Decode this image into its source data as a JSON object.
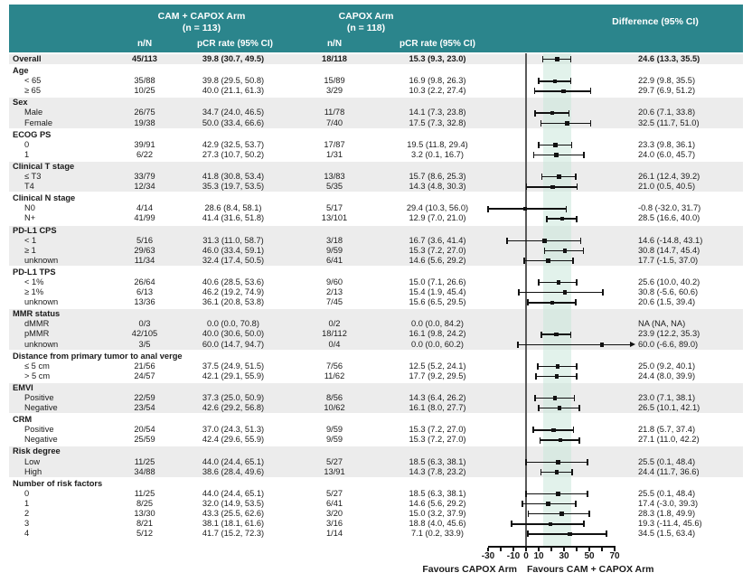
{
  "colors": {
    "header_teal": "#2b858c",
    "row_shade": "#ececec",
    "shaded_band": "#cbe8da",
    "marker_black": "#111111"
  },
  "chart_data": {
    "type": "scatter",
    "subtype": "forest-plot",
    "header": {
      "arm1_line1": "CAM + CAPOX Arm",
      "arm1_line2": "(n = 113)",
      "arm2_line1": "CAPOX Arm",
      "arm2_line2": "(n = 118)",
      "diff": "Difference (95% CI)",
      "col_nN": "n/N",
      "col_pcr": "pCR rate (95% CI)"
    },
    "axis": {
      "min": -30,
      "max": 70,
      "tick_step": 10,
      "tick_labels": [
        {
          "v": -30,
          "t": "-30"
        },
        {
          "v": -10,
          "t": "-10"
        },
        {
          "v": 0,
          "t": "0"
        },
        {
          "v": 10,
          "t": "10"
        },
        {
          "v": 30,
          "t": "30"
        },
        {
          "v": 50,
          "t": "50"
        },
        {
          "v": 70,
          "t": "70"
        }
      ],
      "favours_left": "Favours CAPOX Arm",
      "favours_right": "Favours CAM + CAPOX Arm"
    },
    "shaded_band": {
      "lo": 13.3,
      "hi": 35.5
    },
    "overall": {
      "label": "Overall",
      "n1": "45/113",
      "pcr1": "39.8 (30.7, 49.5)",
      "n2": "18/118",
      "pcr2": "15.3 (9.3, 23.0)",
      "diff": "24.6 (13.3, 35.5)",
      "est": 24.6,
      "lo": 13.3,
      "hi": 35.5
    },
    "groups": [
      {
        "label": "Age",
        "rows": [
          {
            "label": "< 65",
            "n1": "35/88",
            "pcr1": "39.8 (29.5, 50.8)",
            "n2": "15/89",
            "pcr2": "16.9 (9.8, 26.3)",
            "diff": "22.9 (9.8, 35.5)",
            "est": 22.9,
            "lo": 9.8,
            "hi": 35.5
          },
          {
            "label": "≥ 65",
            "n1": "10/25",
            "pcr1": "40.0 (21.1, 61.3)",
            "n2": "3/29",
            "pcr2": "10.3 (2.2, 27.4)",
            "diff": "29.7 (6.9, 51.2)",
            "est": 29.7,
            "lo": 6.9,
            "hi": 51.2
          }
        ]
      },
      {
        "label": "Sex",
        "rows": [
          {
            "label": "Male",
            "n1": "26/75",
            "pcr1": "34.7 (24.0, 46.5)",
            "n2": "11/78",
            "pcr2": "14.1 (7.3, 23.8)",
            "diff": "20.6 (7.1, 33.8)",
            "est": 20.6,
            "lo": 7.1,
            "hi": 33.8
          },
          {
            "label": "Female",
            "n1": "19/38",
            "pcr1": "50.0 (33.4, 66.6)",
            "n2": "7/40",
            "pcr2": "17.5 (7.3, 32.8)",
            "diff": "32.5 (11.7, 51.0)",
            "est": 32.5,
            "lo": 11.7,
            "hi": 51.0
          }
        ]
      },
      {
        "label": "ECOG PS",
        "rows": [
          {
            "label": "0",
            "n1": "39/91",
            "pcr1": "42.9 (32.5, 53.7)",
            "n2": "17/87",
            "pcr2": "19.5 (11.8, 29.4)",
            "diff": "23.3 (9.8, 36.1)",
            "est": 23.3,
            "lo": 9.8,
            "hi": 36.1
          },
          {
            "label": "1",
            "n1": "6/22",
            "pcr1": "27.3 (10.7, 50.2)",
            "n2": "1/31",
            "pcr2": "3.2 (0.1, 16.7)",
            "diff": "24.0 (6.0, 45.7)",
            "est": 24.0,
            "lo": 6.0,
            "hi": 45.7
          }
        ]
      },
      {
        "label": "Clinical T stage",
        "rows": [
          {
            "label": "≤ T3",
            "n1": "33/79",
            "pcr1": "41.8 (30.8, 53.4)",
            "n2": "13/83",
            "pcr2": "15.7 (8.6, 25.3)",
            "diff": "26.1 (12.4, 39.2)",
            "est": 26.1,
            "lo": 12.4,
            "hi": 39.2
          },
          {
            "label": "T4",
            "n1": "12/34",
            "pcr1": "35.3 (19.7, 53.5)",
            "n2": "5/35",
            "pcr2": "14.3 (4.8, 30.3)",
            "diff": "21.0 (0.5, 40.5)",
            "est": 21.0,
            "lo": 0.5,
            "hi": 40.5
          }
        ]
      },
      {
        "label": "Clinical N stage",
        "rows": [
          {
            "label": "N0",
            "n1": "4/14",
            "pcr1": "28.6 (8.4, 58.1)",
            "n2": "5/17",
            "pcr2": "29.4 (10.3, 56.0)",
            "diff": "-0.8 (-32.0, 31.7)",
            "est": -0.8,
            "lo": -32.0,
            "hi": 31.7
          },
          {
            "label": "N+",
            "n1": "41/99",
            "pcr1": "41.4 (31.6, 51.8)",
            "n2": "13/101",
            "pcr2": "12.9 (7.0, 21.0)",
            "diff": "28.5 (16.6, 40.0)",
            "est": 28.5,
            "lo": 16.6,
            "hi": 40.0
          }
        ]
      },
      {
        "label": "PD-L1 CPS",
        "rows": [
          {
            "label": "< 1",
            "n1": "5/16",
            "pcr1": "31.3 (11.0, 58.7)",
            "n2": "3/18",
            "pcr2": "16.7 (3.6, 41.4)",
            "diff": "14.6 (-14.8, 43.1)",
            "est": 14.6,
            "lo": -14.8,
            "hi": 43.1
          },
          {
            "label": "≥ 1",
            "n1": "29/63",
            "pcr1": "46.0 (33.4, 59.1)",
            "n2": "9/59",
            "pcr2": "15.3 (7.2, 27.0)",
            "diff": "30.8 (14.7, 45.4)",
            "est": 30.8,
            "lo": 14.7,
            "hi": 45.4
          },
          {
            "label": "unknown",
            "n1": "11/34",
            "pcr1": "32.4 (17.4, 50.5)",
            "n2": "6/41",
            "pcr2": "14.6 (5.6, 29.2)",
            "diff": "17.7 (-1.5, 37.0)",
            "est": 17.7,
            "lo": -1.5,
            "hi": 37.0
          }
        ]
      },
      {
        "label": "PD-L1 TPS",
        "rows": [
          {
            "label": "< 1%",
            "n1": "26/64",
            "pcr1": "40.6 (28.5, 53.6)",
            "n2": "9/60",
            "pcr2": "15.0 (7.1, 26.6)",
            "diff": "25.6 (10.0, 40.2)",
            "est": 25.6,
            "lo": 10.0,
            "hi": 40.2
          },
          {
            "label": "≥ 1%",
            "n1": "6/13",
            "pcr1": "46.2 (19.2, 74.9)",
            "n2": "2/13",
            "pcr2": "15.4 (1.9, 45.4)",
            "diff": "30.8 (-5.6, 60.6)",
            "est": 30.8,
            "lo": -5.6,
            "hi": 60.6
          },
          {
            "label": "unknown",
            "n1": "13/36",
            "pcr1": "36.1 (20.8, 53.8)",
            "n2": "7/45",
            "pcr2": "15.6 (6.5, 29.5)",
            "diff": "20.6 (1.5, 39.4)",
            "est": 20.6,
            "lo": 1.5,
            "hi": 39.4
          }
        ]
      },
      {
        "label": "MMR status",
        "rows": [
          {
            "label": "dMMR",
            "n1": "0/3",
            "pcr1": "0.0 (0.0, 70.8)",
            "n2": "0/2",
            "pcr2": "0.0 (0.0, 84.2)",
            "diff": "NA (NA, NA)",
            "est": null,
            "lo": null,
            "hi": null,
            "na": true
          },
          {
            "label": "pMMR",
            "n1": "42/105",
            "pcr1": "40.0 (30.6, 50.0)",
            "n2": "18/112",
            "pcr2": "16.1 (9.8, 24.2)",
            "diff": "23.9 (12.2, 35.3)",
            "est": 23.9,
            "lo": 12.2,
            "hi": 35.3
          },
          {
            "label": "unknown",
            "n1": "3/5",
            "pcr1": "60.0 (14.7, 94.7)",
            "n2": "0/4",
            "pcr2": "0.0 (0.0, 60.2)",
            "diff": "60.0 (-6.6, 89.0)",
            "est": 60.0,
            "lo": -6.6,
            "hi": 89.0,
            "arrow_right": true
          }
        ]
      },
      {
        "label": "Distance from primary tumor to anal verge",
        "rows": [
          {
            "label": "≤ 5 cm",
            "n1": "21/56",
            "pcr1": "37.5 (24.9, 51.5)",
            "n2": "7/56",
            "pcr2": "12.5 (5.2, 24.1)",
            "diff": "25.0 (9.2, 40.1)",
            "est": 25.0,
            "lo": 9.2,
            "hi": 40.1
          },
          {
            "label": "> 5 cm",
            "n1": "24/57",
            "pcr1": "42.1 (29.1, 55.9)",
            "n2": "11/62",
            "pcr2": "17.7 (9.2, 29.5)",
            "diff": "24.4 (8.0, 39.9)",
            "est": 24.4,
            "lo": 8.0,
            "hi": 39.9
          }
        ]
      },
      {
        "label": "EMVI",
        "rows": [
          {
            "label": "Positive",
            "n1": "22/59",
            "pcr1": "37.3 (25.0, 50.9)",
            "n2": "8/56",
            "pcr2": "14.3 (6.4, 26.2)",
            "diff": "23.0 (7.1, 38.1)",
            "est": 23.0,
            "lo": 7.1,
            "hi": 38.1
          },
          {
            "label": "Negative",
            "n1": "23/54",
            "pcr1": "42.6 (29.2, 56.8)",
            "n2": "10/62",
            "pcr2": "16.1 (8.0, 27.7)",
            "diff": "26.5 (10.1, 42.1)",
            "est": 26.5,
            "lo": 10.1,
            "hi": 42.1
          }
        ]
      },
      {
        "label": "CRM",
        "rows": [
          {
            "label": "Positive",
            "n1": "20/54",
            "pcr1": "37.0 (24.3, 51.3)",
            "n2": "9/59",
            "pcr2": "15.3 (7.2, 27.0)",
            "diff": "21.8 (5.7, 37.4)",
            "est": 21.8,
            "lo": 5.7,
            "hi": 37.4
          },
          {
            "label": "Negative",
            "n1": "25/59",
            "pcr1": "42.4 (29.6, 55.9)",
            "n2": "9/59",
            "pcr2": "15.3 (7.2, 27.0)",
            "diff": "27.1 (11.0, 42.2)",
            "est": 27.1,
            "lo": 11.0,
            "hi": 42.2
          }
        ]
      },
      {
        "label": "Risk degree",
        "rows": [
          {
            "label": "Low",
            "n1": "11/25",
            "pcr1": "44.0 (24.4, 65.1)",
            "n2": "5/27",
            "pcr2": "18.5 (6.3, 38.1)",
            "diff": "25.5 (0.1, 48.4)",
            "est": 25.5,
            "lo": 0.1,
            "hi": 48.4
          },
          {
            "label": "High",
            "n1": "34/88",
            "pcr1": "38.6 (28.4, 49.6)",
            "n2": "13/91",
            "pcr2": "14.3 (7.8, 23.2)",
            "diff": "24.4 (11.7, 36.6)",
            "est": 24.4,
            "lo": 11.7,
            "hi": 36.6
          }
        ]
      },
      {
        "label": "Number of risk factors",
        "rows": [
          {
            "label": "0",
            "n1": "11/25",
            "pcr1": "44.0 (24.4, 65.1)",
            "n2": "5/27",
            "pcr2": "18.5 (6.3, 38.1)",
            "diff": "25.5 (0.1, 48.4)",
            "est": 25.5,
            "lo": 0.1,
            "hi": 48.4
          },
          {
            "label": "1",
            "n1": "8/25",
            "pcr1": "32.0 (14.9, 53.5)",
            "n2": "6/41",
            "pcr2": "14.6 (5.6, 29.2)",
            "diff": "17.4 (-3.0, 39.3)",
            "est": 17.4,
            "lo": -3.0,
            "hi": 39.3
          },
          {
            "label": "2",
            "n1": "13/30",
            "pcr1": "43.3 (25.5, 62.6)",
            "n2": "3/20",
            "pcr2": "15.0 (3.2, 37.9)",
            "diff": "28.3 (1.8, 49.9)",
            "est": 28.3,
            "lo": 1.8,
            "hi": 49.9
          },
          {
            "label": "3",
            "n1": "8/21",
            "pcr1": "38.1 (18.1, 61.6)",
            "n2": "3/16",
            "pcr2": "18.8 (4.0, 45.6)",
            "diff": "19.3 (-11.4, 45.6)",
            "est": 19.3,
            "lo": -11.4,
            "hi": 45.6
          },
          {
            "label": "4",
            "n1": "5/12",
            "pcr1": "41.7 (15.2, 72.3)",
            "n2": "1/14",
            "pcr2": "7.1 (0.2, 33.9)",
            "diff": "34.5 (1.5, 63.4)",
            "est": 34.5,
            "lo": 1.5,
            "hi": 63.4
          }
        ]
      }
    ]
  }
}
